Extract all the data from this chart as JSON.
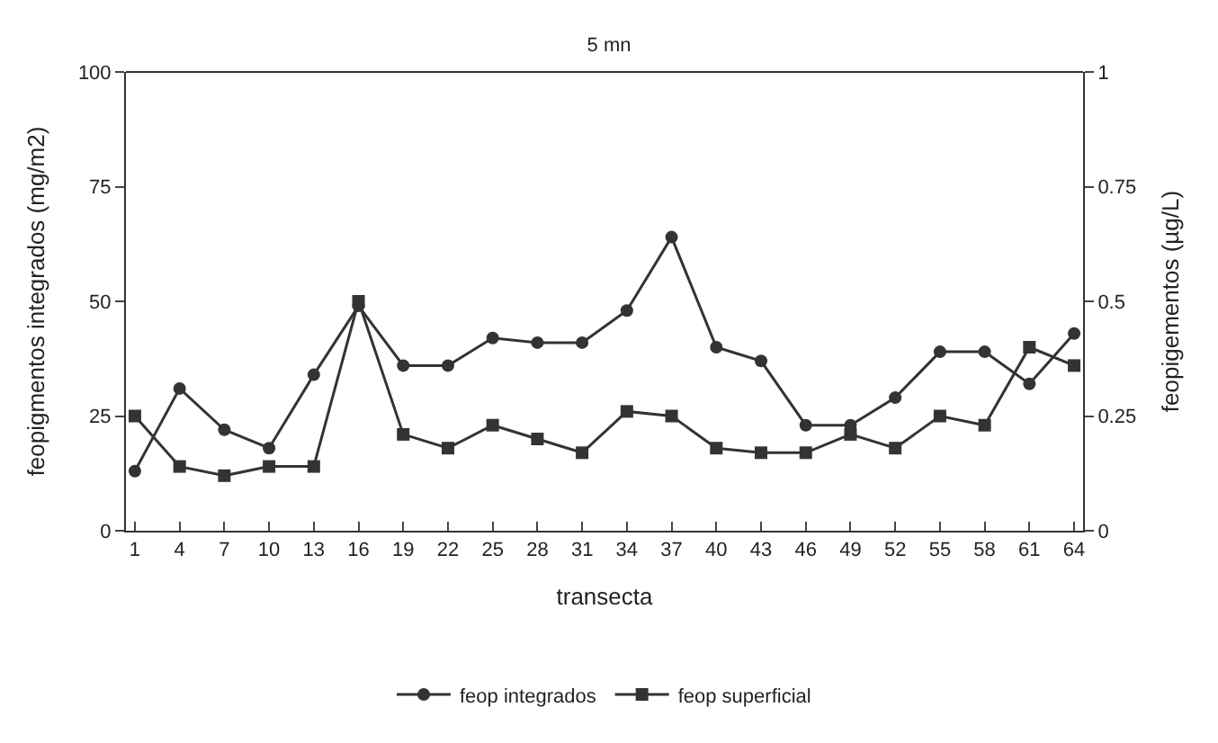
{
  "chart_data": {
    "type": "line",
    "title": "5 mn",
    "xlabel": "transecta",
    "ylabel": "feopigmentos integrados (mg/m2)",
    "y2label": "feopigementos (µg/L)",
    "categories": [
      "1",
      "4",
      "7",
      "10",
      "13",
      "16",
      "19",
      "22",
      "25",
      "28",
      "31",
      "34",
      "37",
      "40",
      "43",
      "46",
      "49",
      "52",
      "55",
      "58",
      "61",
      "64"
    ],
    "series": [
      {
        "name": "feop integrados",
        "color": "#333333",
        "marker": "circle",
        "values": [
          13,
          31,
          22,
          18,
          34,
          49,
          36,
          36,
          42,
          41,
          41,
          48,
          64,
          40,
          37,
          23,
          23,
          29,
          39,
          39,
          32,
          43
        ]
      },
      {
        "name": "feop superficial",
        "color": "#333333",
        "marker": "square",
        "axis": "y2",
        "values": [
          0.25,
          0.14,
          0.12,
          0.14,
          0.14,
          0.5,
          0.21,
          0.18,
          0.23,
          0.2,
          0.17,
          0.26,
          0.25,
          0.18,
          0.17,
          0.17,
          0.21,
          0.18,
          0.25,
          0.23,
          0.4,
          0.36
        ]
      }
    ],
    "ylim": [
      0,
      100
    ],
    "yticks": [
      0,
      25,
      50,
      75,
      100
    ],
    "y2lim": [
      0,
      1
    ],
    "y2ticks": [
      0,
      0.25,
      0.5,
      0.75,
      1
    ],
    "legend": "bottom",
    "line_style": "solid"
  }
}
